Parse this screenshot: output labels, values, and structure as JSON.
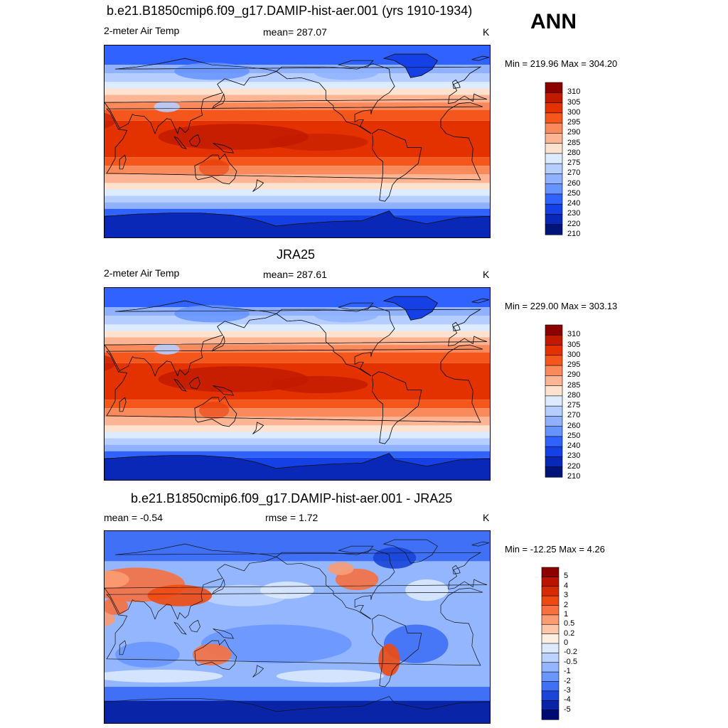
{
  "season": "ANN",
  "panels": [
    {
      "title": "b.e21.B1850cmip6.f09_g17.DAMIP-hist-aer.001 (yrs 1910-1934)",
      "left_label": "2-meter Air Temp",
      "center_label": "mean= 287.07",
      "units": "K",
      "minmax": "Min = 219.96 Max = 304.20",
      "colorbar": {
        "labels": [
          "310",
          "305",
          "300",
          "295",
          "290",
          "285",
          "280",
          "275",
          "270",
          "260",
          "250",
          "240",
          "230",
          "220",
          "210"
        ],
        "colors": [
          "#8c0000",
          "#c21a00",
          "#e33200",
          "#f5561c",
          "#fa8a5c",
          "#fcb594",
          "#fde3cf",
          "#dcebff",
          "#b5cdff",
          "#8fb1ff",
          "#6693ff",
          "#2f62ff",
          "#1440e6",
          "#0a28b8",
          "#00147a"
        ]
      },
      "map": {
        "kind": "abs",
        "anomaly": 0
      }
    },
    {
      "title": "JRA25",
      "left_label": "2-meter Air Temp",
      "center_label": "mean= 287.61",
      "units": "K",
      "minmax": "Min = 229.00 Max = 303.13",
      "colorbar": {
        "labels": [
          "310",
          "305",
          "300",
          "295",
          "290",
          "285",
          "280",
          "275",
          "270",
          "260",
          "250",
          "240",
          "230",
          "220",
          "210"
        ],
        "colors": [
          "#8c0000",
          "#c21a00",
          "#e33200",
          "#f5561c",
          "#fa8a5c",
          "#fcb594",
          "#fde3cf",
          "#dcebff",
          "#b5cdff",
          "#8fb1ff",
          "#6693ff",
          "#2f62ff",
          "#1440e6",
          "#0a28b8",
          "#00147a"
        ]
      },
      "map": {
        "kind": "abs",
        "anomaly": 1
      }
    },
    {
      "title": "b.e21.B1850cmip6.f09_g17.DAMIP-hist-aer.001 - JRA25",
      "left_label": "mean =  -0.54",
      "center_label": "rmse =   1.72",
      "units": "K",
      "minmax": "Min = -12.25 Max =   4.26",
      "colorbar": {
        "labels": [
          "5",
          "4",
          "3",
          "2",
          "1",
          "0.5",
          "0.2",
          "0",
          "-0.2",
          "-0.5",
          "-1",
          "-2",
          "-3",
          "-4",
          "-5"
        ],
        "colors": [
          "#8c0000",
          "#b81400",
          "#d62a00",
          "#ee4a10",
          "#f87040",
          "#fb9b72",
          "#fcc6a8",
          "#fdeee2",
          "#dce9ff",
          "#bcd3ff",
          "#93b6ff",
          "#6a96ff",
          "#3f70f5",
          "#1a45d8",
          "#0a24a8",
          "#000a73"
        ]
      },
      "map": {
        "kind": "diff",
        "anomaly": 2
      }
    }
  ]
}
